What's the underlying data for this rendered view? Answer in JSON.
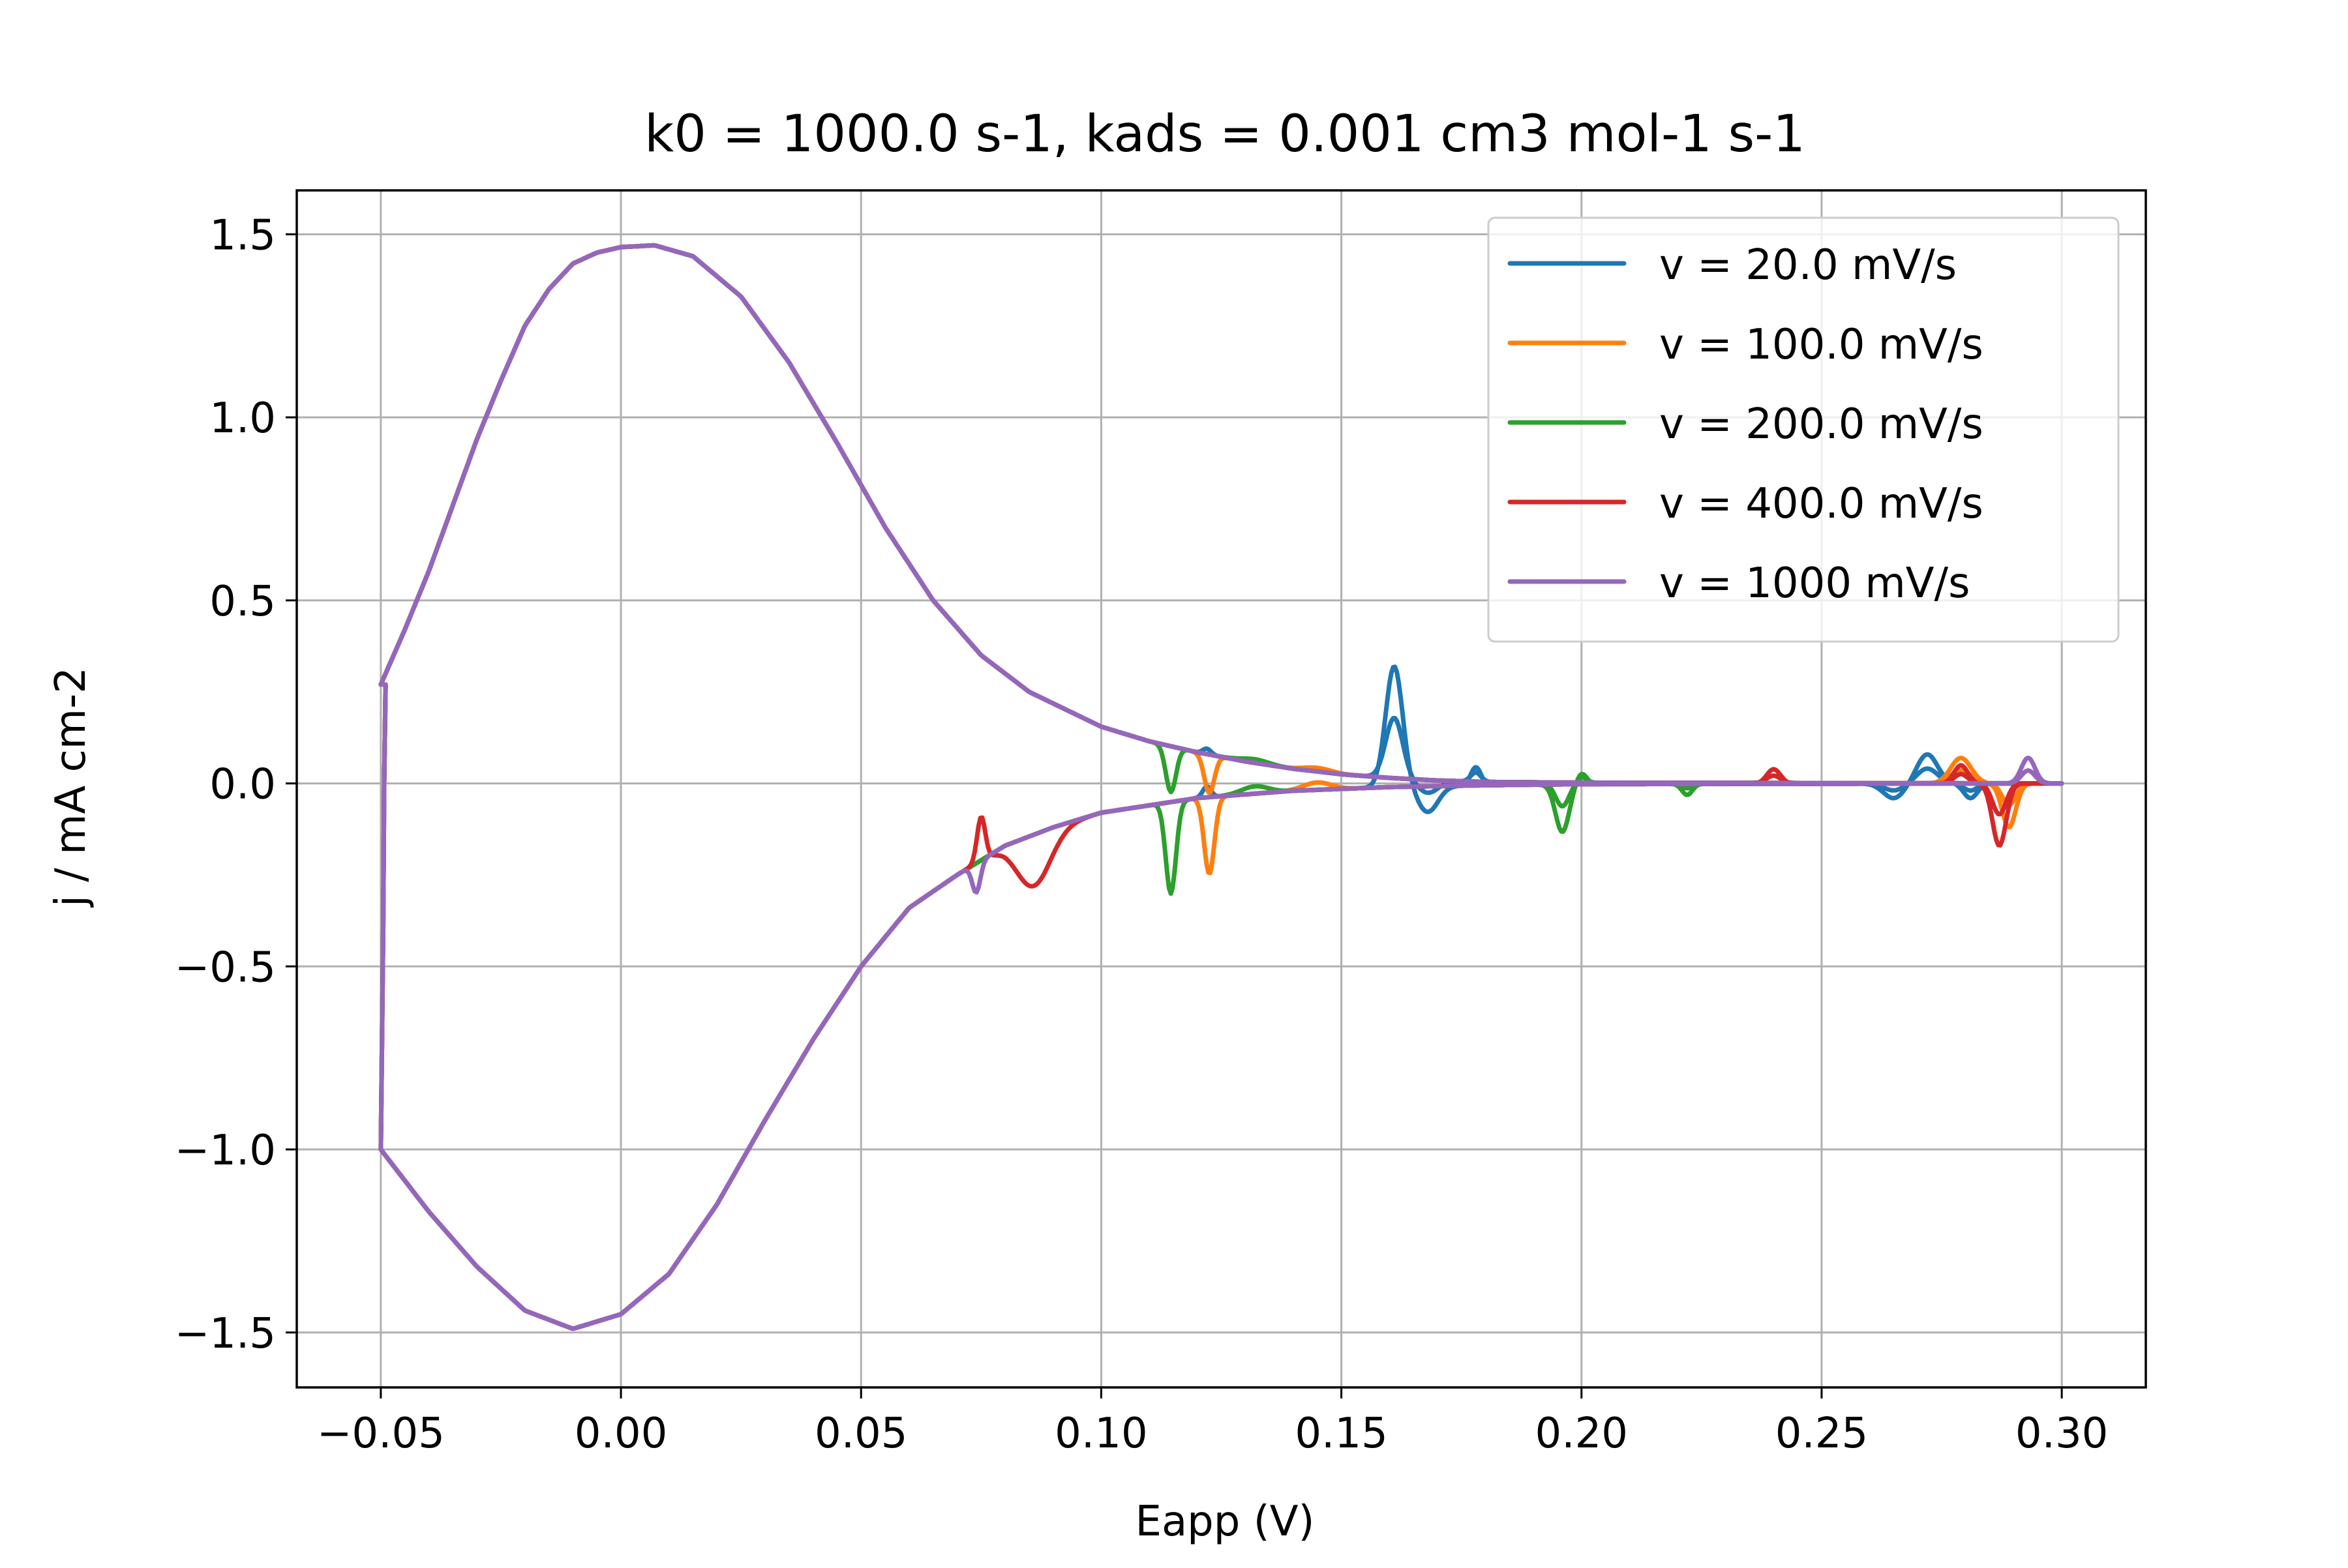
{
  "chart_data": {
    "type": "line",
    "title": "k0 = 1000.0 s-1, kads = 0.001 cm3 mol-1 s-1",
    "xlabel": "Eapp (V)",
    "ylabel": "j / mA cm-2",
    "xlim": [
      -0.0675,
      0.3175
    ],
    "ylim": [
      -1.65,
      1.62
    ],
    "xticks": [
      -0.05,
      0.0,
      0.05,
      0.1,
      0.15,
      0.2,
      0.25,
      0.3
    ],
    "xtick_labels": [
      "−0.05",
      "0.00",
      "0.05",
      "0.10",
      "0.15",
      "0.20",
      "0.25",
      "0.30"
    ],
    "yticks": [
      -1.5,
      -1.0,
      -0.5,
      0.0,
      0.5,
      1.0,
      1.5
    ],
    "ytick_labels": [
      "−1.5",
      "−1.0",
      "−0.5",
      "0.0",
      "0.5",
      "1.0",
      "1.5"
    ],
    "grid": true,
    "legend_position": "top-right",
    "base_curve": {
      "anodic_sweep": [
        [
          -0.05,
          0.27
        ],
        [
          -0.045,
          0.42
        ],
        [
          -0.04,
          0.58
        ],
        [
          -0.035,
          0.76
        ],
        [
          -0.03,
          0.94
        ],
        [
          -0.025,
          1.1
        ],
        [
          -0.02,
          1.25
        ],
        [
          -0.015,
          1.35
        ],
        [
          -0.01,
          1.42
        ],
        [
          -0.005,
          1.45
        ],
        [
          0.0,
          1.465
        ],
        [
          0.007,
          1.47
        ],
        [
          0.015,
          1.44
        ],
        [
          0.025,
          1.33
        ],
        [
          0.035,
          1.15
        ],
        [
          0.045,
          0.93
        ],
        [
          0.055,
          0.7
        ],
        [
          0.065,
          0.5
        ],
        [
          0.075,
          0.35
        ],
        [
          0.085,
          0.25
        ],
        [
          0.1,
          0.155
        ],
        [
          0.11,
          0.115
        ],
        [
          0.12,
          0.085
        ],
        [
          0.13,
          0.06
        ],
        [
          0.14,
          0.04
        ],
        [
          0.15,
          0.025
        ],
        [
          0.16,
          0.015
        ],
        [
          0.17,
          0.008
        ],
        [
          0.18,
          0.004
        ],
        [
          0.2,
          0.002
        ],
        [
          0.25,
          0.001
        ],
        [
          0.3,
          0.0
        ]
      ],
      "cathodic_sweep": [
        [
          0.3,
          0.0
        ],
        [
          0.25,
          -0.001
        ],
        [
          0.2,
          -0.002
        ],
        [
          0.18,
          -0.005
        ],
        [
          0.16,
          -0.01
        ],
        [
          0.14,
          -0.02
        ],
        [
          0.12,
          -0.04
        ],
        [
          0.1,
          -0.08
        ],
        [
          0.09,
          -0.12
        ],
        [
          0.08,
          -0.17
        ],
        [
          0.07,
          -0.25
        ],
        [
          0.06,
          -0.34
        ],
        [
          0.05,
          -0.5
        ],
        [
          0.04,
          -0.7
        ],
        [
          0.03,
          -0.92
        ],
        [
          0.02,
          -1.15
        ],
        [
          0.01,
          -1.34
        ],
        [
          0.0,
          -1.45
        ],
        [
          -0.01,
          -1.49
        ],
        [
          -0.02,
          -1.44
        ],
        [
          -0.03,
          -1.32
        ],
        [
          -0.04,
          -1.17
        ],
        [
          -0.05,
          -1.0
        ]
      ],
      "vertical_segment": [
        [
          -0.05,
          -1.0
        ],
        [
          -0.0495,
          -0.4
        ],
        [
          -0.0493,
          0.0
        ],
        [
          -0.049,
          0.27
        ]
      ]
    },
    "series": [
      {
        "name": "v = 20.0 mV/s",
        "color": "#1f77b4",
        "features": [
          {
            "center": 0.122,
            "width": 0.0012,
            "amp": 0.03
          },
          {
            "center": 0.161,
            "width": 0.0025,
            "amp": 0.33
          },
          {
            "center": 0.168,
            "width": 0.003,
            "amp": -0.07
          },
          {
            "center": 0.178,
            "width": 0.0015,
            "amp": 0.05
          },
          {
            "center": 0.265,
            "width": 0.003,
            "amp": -0.04
          },
          {
            "center": 0.272,
            "width": 0.003,
            "amp": 0.08
          },
          {
            "center": 0.281,
            "width": 0.002,
            "amp": -0.04
          }
        ]
      },
      {
        "name": "v = 100.0 mV/s",
        "color": "#ff7f0e",
        "features": [
          {
            "center": 0.1225,
            "width": 0.0015,
            "amp": -0.21
          },
          {
            "center": 0.145,
            "width": 0.004,
            "amp": 0.02
          },
          {
            "center": 0.279,
            "width": 0.003,
            "amp": 0.07
          },
          {
            "center": 0.289,
            "width": 0.002,
            "amp": -0.12
          }
        ]
      },
      {
        "name": "v = 200.0 mV/s",
        "color": "#2ca02c",
        "features": [
          {
            "center": 0.1145,
            "width": 0.0015,
            "amp": -0.25
          },
          {
            "center": 0.132,
            "width": 0.004,
            "amp": 0.02
          },
          {
            "center": 0.196,
            "width": 0.002,
            "amp": -0.13
          },
          {
            "center": 0.2,
            "width": 0.0015,
            "amp": 0.03
          },
          {
            "center": 0.222,
            "width": 0.0015,
            "amp": -0.03
          }
        ]
      },
      {
        "name": "v = 400.0 mV/s",
        "color": "#d62728",
        "features": [
          {
            "center": 0.075,
            "width": 0.0012,
            "amp": 0.12
          },
          {
            "center": 0.086,
            "width": 0.005,
            "amp": -0.14
          },
          {
            "center": 0.24,
            "width": 0.002,
            "amp": 0.04
          },
          {
            "center": 0.279,
            "width": 0.002,
            "amp": 0.05
          },
          {
            "center": 0.287,
            "width": 0.002,
            "amp": -0.17
          }
        ]
      },
      {
        "name": "v = 1000 mV/s",
        "color": "#9467bd",
        "features": [
          {
            "center": 0.074,
            "width": 0.0012,
            "amp": -0.08
          },
          {
            "center": 0.293,
            "width": 0.002,
            "amp": 0.07
          }
        ]
      }
    ]
  }
}
